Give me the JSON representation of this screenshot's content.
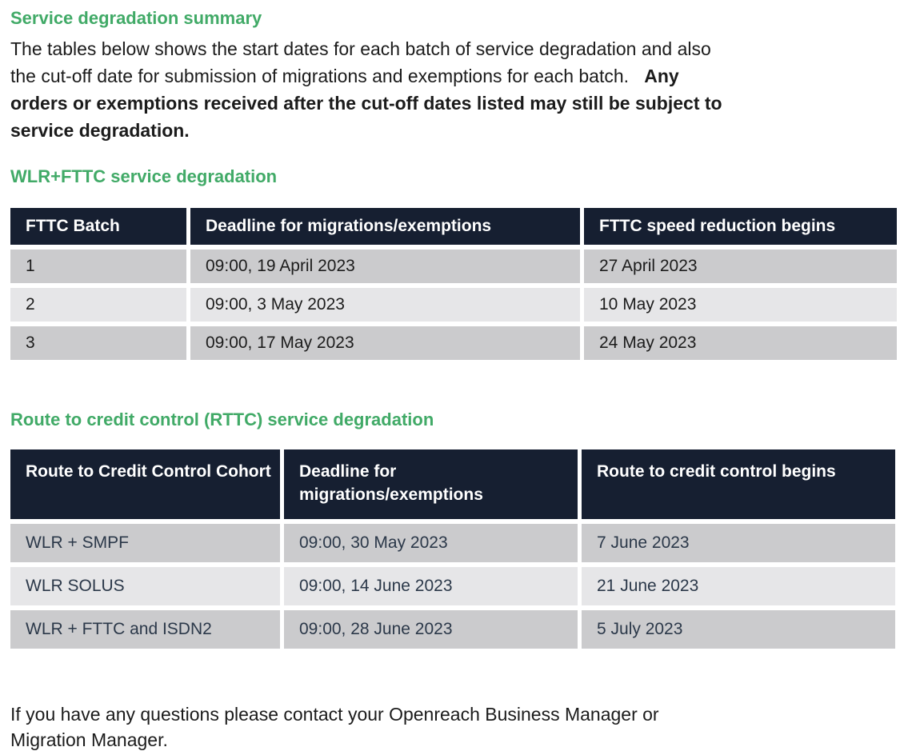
{
  "colors": {
    "heading_green": "#41AA67",
    "table_header_navy": "#161F31",
    "row_odd_gray": "#CBCBCD",
    "row_even_gray": "#E6E6E8",
    "table2_text": "#2B3849"
  },
  "page": {
    "summary_heading": "Service degradation summary",
    "intro": {
      "line1": "The tables below shows the start dates for each batch of service degradation and also",
      "line2_normal": "the cut-off date for submission of migrations and exemptions for each batch.   ",
      "line2_bold": "Any",
      "line3_bold": "orders or exemptions received after the cut-off dates listed may still be subject to",
      "line4_bold": "service degradation."
    },
    "footer": {
      "line1": "If you have any questions please contact your Openreach Business Manager or",
      "line2": "Migration Manager."
    }
  },
  "fttc_table": {
    "heading": "WLR+FTTC service degradation",
    "columns": [
      "FTTC Batch",
      "Deadline for migrations/exemptions",
      "FTTC speed reduction begins"
    ],
    "rows": [
      [
        "1",
        "09:00, 19 April 2023",
        "27 April 2023"
      ],
      [
        "2",
        "09:00, 3 May 2023",
        "10 May 2023"
      ],
      [
        "3",
        "09:00, 17 May 2023",
        "24 May 2023"
      ]
    ]
  },
  "rttc_table": {
    "heading": "Route to credit control (RTTC) service degradation",
    "columns": [
      "Route to Credit Control Cohort",
      "Deadline for migrations/exemptions",
      "Route to credit control begins"
    ],
    "rows": [
      [
        "WLR + SMPF",
        "09:00, 30 May 2023",
        "7 June 2023"
      ],
      [
        "WLR SOLUS",
        "09:00, 14 June 2023",
        "21 June 2023"
      ],
      [
        "WLR + FTTC and ISDN2",
        "09:00, 28 June 2023",
        "5 July 2023"
      ]
    ]
  }
}
